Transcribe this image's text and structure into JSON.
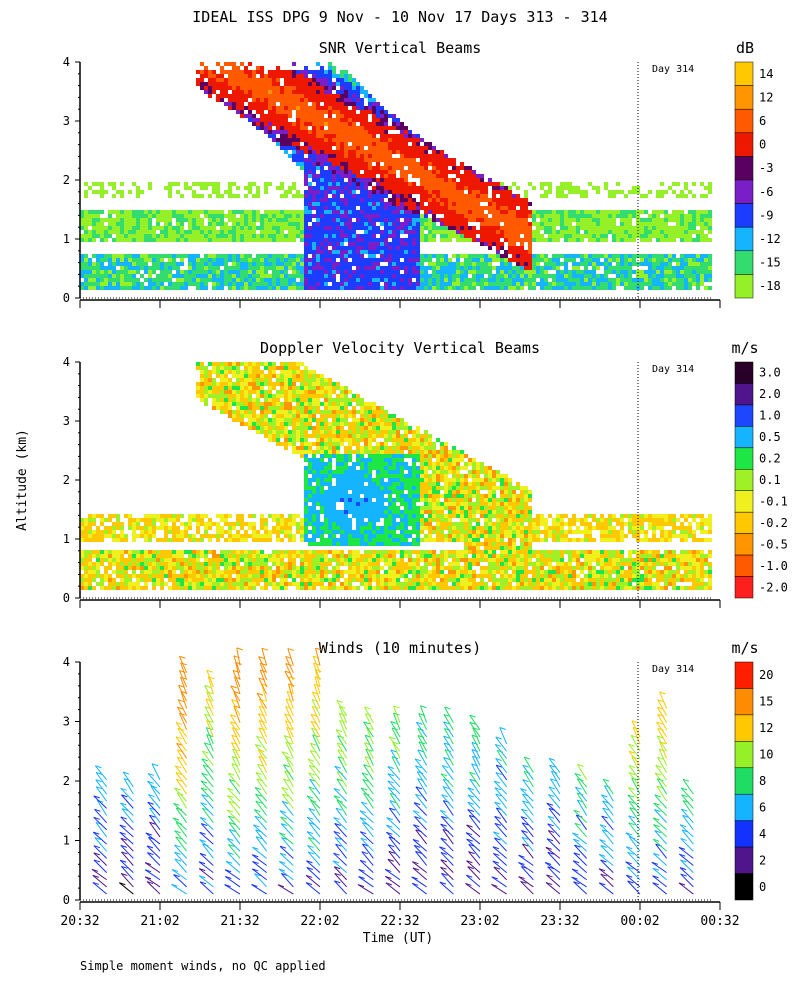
{
  "page_title": "IDEAL ISS DPG   9 Nov - 10 Nov 17 Days 313 - 314",
  "footnote": "Simple moment winds, no QC applied",
  "y_axis_label": "Altitude (km)",
  "x_axis_label": "Time (UT)",
  "x_ticks": [
    "20:32",
    "21:02",
    "21:32",
    "22:02",
    "22:32",
    "23:02",
    "23:32",
    "00:02",
    "00:32"
  ],
  "y_ticks": [
    "0",
    "1",
    "2",
    "3",
    "4"
  ],
  "day_marker": {
    "label": "Day 314",
    "time": "00:02"
  },
  "chart_data": [
    {
      "type": "heatmap",
      "title": "SNR Vertical Beams",
      "xlabel": "Time (UT)",
      "ylabel": "Altitude (km)",
      "xlim": [
        "20:32",
        "00:32"
      ],
      "ylim": [
        0,
        4
      ],
      "colorbar": {
        "unit": "dB",
        "labels": [
          "14",
          "12",
          "6",
          "0",
          "-3",
          "-6",
          "-9",
          "-12",
          "-15",
          "-18"
        ],
        "colors": [
          "#ffc800",
          "#ff9600",
          "#ff5a00",
          "#ee1800",
          "#5a0060",
          "#7a1ec8",
          "#1c3cff",
          "#14b4ff",
          "#32dc6e",
          "#96f028"
        ]
      },
      "features": [
        {
          "description": "Persistent low-level echo layer",
          "altitude_km": [
            0.2,
            0.7
          ],
          "time": [
            "20:32",
            "00:32"
          ],
          "snr_db": -9
        },
        {
          "description": "Elevated layer",
          "altitude_km": [
            1.0,
            1.5
          ],
          "time": [
            "20:32",
            "00:32"
          ],
          "snr_db": -12
        },
        {
          "description": "Strong echo plume descending in time",
          "altitude_km": [
            1.1,
            4.0
          ],
          "time": [
            "21:32",
            "23:17"
          ],
          "snr_db": 6
        }
      ]
    },
    {
      "type": "heatmap",
      "title": "Doppler Velocity Vertical Beams",
      "xlabel": "Time (UT)",
      "ylabel": "Altitude (km)",
      "xlim": [
        "20:32",
        "00:32"
      ],
      "ylim": [
        0,
        4
      ],
      "colorbar": {
        "unit": "m/s",
        "labels": [
          "3.0",
          "2.0",
          "1.0",
          "0.5",
          "0.2",
          "0.1",
          "-0.1",
          "-0.2",
          "-0.5",
          "-1.0",
          "-2.0"
        ],
        "colors": [
          "#28002a",
          "#50148c",
          "#1e46ff",
          "#14b4ff",
          "#1ee646",
          "#a0f028",
          "#f0f01e",
          "#ffc800",
          "#ff9600",
          "#ff5a00",
          "#ff1e1e"
        ]
      },
      "features": [
        {
          "description": "Upward motion core",
          "altitude_km": [
            1.2,
            2.4
          ],
          "time": [
            "22:02",
            "22:32"
          ],
          "velocity_ms": 0.5
        },
        {
          "description": "Near-zero velocity low layer",
          "altitude_km": [
            0.2,
            0.8
          ],
          "time": [
            "20:32",
            "00:32"
          ],
          "velocity_ms": -0.1
        }
      ]
    },
    {
      "type": "scatter",
      "title": "Winds (10 minutes)",
      "xlabel": "Time (UT)",
      "ylabel": "Altitude (km)",
      "xlim": [
        "20:32",
        "00:32"
      ],
      "ylim": [
        0,
        4
      ],
      "colorbar": {
        "unit": "m/s",
        "labels": [
          "20",
          "15",
          "12",
          "10",
          "8",
          "6",
          "4",
          "2",
          "0"
        ],
        "colors": [
          "#ff1e00",
          "#ff8c00",
          "#ffc800",
          "#96f028",
          "#1edc64",
          "#14b4ff",
          "#1432ff",
          "#50148c",
          "#000000"
        ]
      },
      "profiles": [
        {
          "time": "20:42",
          "top_km": 2.1,
          "speed_ms": 8
        },
        {
          "time": "20:52",
          "top_km": 2.0,
          "speed_ms": 8
        },
        {
          "time": "21:02",
          "top_km": 2.1,
          "speed_ms": 8
        },
        {
          "time": "21:12",
          "top_km": 3.9,
          "speed_ms": 14
        },
        {
          "time": "21:22",
          "top_km": 3.7,
          "speed_ms": 10
        },
        {
          "time": "21:32",
          "top_km": 4.0,
          "speed_ms": 13
        },
        {
          "time": "21:42",
          "top_km": 4.0,
          "speed_ms": 12
        },
        {
          "time": "21:52",
          "top_km": 4.0,
          "speed_ms": 12
        },
        {
          "time": "22:02",
          "top_km": 4.0,
          "speed_ms": 11
        },
        {
          "time": "22:12",
          "top_km": 3.2,
          "speed_ms": 10
        },
        {
          "time": "22:22",
          "top_km": 3.0,
          "speed_ms": 10
        },
        {
          "time": "22:32",
          "top_km": 3.0,
          "speed_ms": 9
        },
        {
          "time": "22:42",
          "top_km": 3.0,
          "speed_ms": 8
        },
        {
          "time": "22:52",
          "top_km": 3.0,
          "speed_ms": 8
        },
        {
          "time": "23:02",
          "top_km": 2.9,
          "speed_ms": 8
        },
        {
          "time": "23:12",
          "top_km": 2.7,
          "speed_ms": 8
        },
        {
          "time": "23:22",
          "top_km": 2.2,
          "speed_ms": 8
        },
        {
          "time": "23:32",
          "top_km": 2.2,
          "speed_ms": 8
        },
        {
          "time": "23:42",
          "top_km": 2.1,
          "speed_ms": 10
        },
        {
          "time": "23:52",
          "top_km": 1.8,
          "speed_ms": 10
        },
        {
          "time": "00:02",
          "top_km": 2.8,
          "speed_ms": 12
        },
        {
          "time": "00:12",
          "top_km": 3.3,
          "speed_ms": 12
        },
        {
          "time": "00:22",
          "top_km": 1.9,
          "speed_ms": 10
        }
      ]
    }
  ]
}
